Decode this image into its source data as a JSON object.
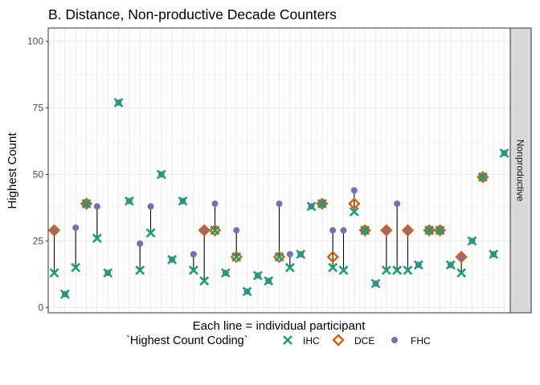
{
  "chart_data": {
    "type": "scatter",
    "title": "B. Distance, Non-productive Decade Counters",
    "xlabel": "Each line = individual participant",
    "ylabel": "Highest Count",
    "ylim": [
      -2,
      105
    ],
    "y_ticks": [
      0,
      25,
      50,
      75,
      100
    ],
    "facet_label": "Nonproductive",
    "grid": true,
    "legend": {
      "title": "`Highest Count Coding`",
      "position": "bottom",
      "entries": [
        {
          "name": "IHC",
          "shape": "x",
          "color": "#1b9e77"
        },
        {
          "name": "DCE",
          "shape": "diamond",
          "color": "#d95f02"
        },
        {
          "name": "FHC",
          "shape": "circle",
          "color": "#7570b3"
        }
      ]
    },
    "participants": [
      {
        "ihc": 13,
        "dce": 29,
        "fhc": 29
      },
      {
        "ihc": 5,
        "dce": null,
        "fhc": 5
      },
      {
        "ihc": 15,
        "dce": null,
        "fhc": 30
      },
      {
        "ihc": 39,
        "dce": 39,
        "fhc": 39
      },
      {
        "ihc": 26,
        "dce": null,
        "fhc": 38
      },
      {
        "ihc": 13,
        "dce": null,
        "fhc": 13
      },
      {
        "ihc": 77,
        "dce": null,
        "fhc": 77
      },
      {
        "ihc": 40,
        "dce": null,
        "fhc": 40
      },
      {
        "ihc": 14,
        "dce": null,
        "fhc": 24
      },
      {
        "ihc": 28,
        "dce": null,
        "fhc": 38
      },
      {
        "ihc": 50,
        "dce": null,
        "fhc": 50
      },
      {
        "ihc": 18,
        "dce": null,
        "fhc": 18
      },
      {
        "ihc": 40,
        "dce": null,
        "fhc": 40
      },
      {
        "ihc": 14,
        "dce": null,
        "fhc": 20
      },
      {
        "ihc": 10,
        "dce": 29,
        "fhc": 29
      },
      {
        "ihc": 29,
        "dce": 29,
        "fhc": 39
      },
      {
        "ihc": 13,
        "dce": null,
        "fhc": 13
      },
      {
        "ihc": 19,
        "dce": 19,
        "fhc": 29
      },
      {
        "ihc": 6,
        "dce": null,
        "fhc": 6
      },
      {
        "ihc": 12,
        "dce": null,
        "fhc": 12
      },
      {
        "ihc": 10,
        "dce": null,
        "fhc": 10
      },
      {
        "ihc": 19,
        "dce": 19,
        "fhc": 39
      },
      {
        "ihc": 15,
        "dce": null,
        "fhc": 20
      },
      {
        "ihc": 20,
        "dce": null,
        "fhc": 20
      },
      {
        "ihc": 38,
        "dce": null,
        "fhc": 38
      },
      {
        "ihc": 39,
        "dce": 39,
        "fhc": 39
      },
      {
        "ihc": 15,
        "dce": 19,
        "fhc": 29
      },
      {
        "ihc": 14,
        "dce": null,
        "fhc": 29
      },
      {
        "ihc": 36,
        "dce": 39,
        "fhc": 44
      },
      {
        "ihc": 29,
        "dce": 29,
        "fhc": 29
      },
      {
        "ihc": 9,
        "dce": null,
        "fhc": 9
      },
      {
        "ihc": 14,
        "dce": 29,
        "fhc": 29
      },
      {
        "ihc": 14,
        "dce": null,
        "fhc": 39
      },
      {
        "ihc": 14,
        "dce": 29,
        "fhc": 29
      },
      {
        "ihc": 16,
        "dce": null,
        "fhc": 16
      },
      {
        "ihc": 29,
        "dce": 29,
        "fhc": 29
      },
      {
        "ihc": 29,
        "dce": 29,
        "fhc": 29
      },
      {
        "ihc": 16,
        "dce": null,
        "fhc": 16
      },
      {
        "ihc": 13,
        "dce": 19,
        "fhc": 19
      },
      {
        "ihc": 25,
        "dce": null,
        "fhc": 25
      },
      {
        "ihc": 49,
        "dce": 49,
        "fhc": 49
      },
      {
        "ihc": 20,
        "dce": null,
        "fhc": 20
      },
      {
        "ihc": 58,
        "dce": null,
        "fhc": 58
      }
    ]
  }
}
